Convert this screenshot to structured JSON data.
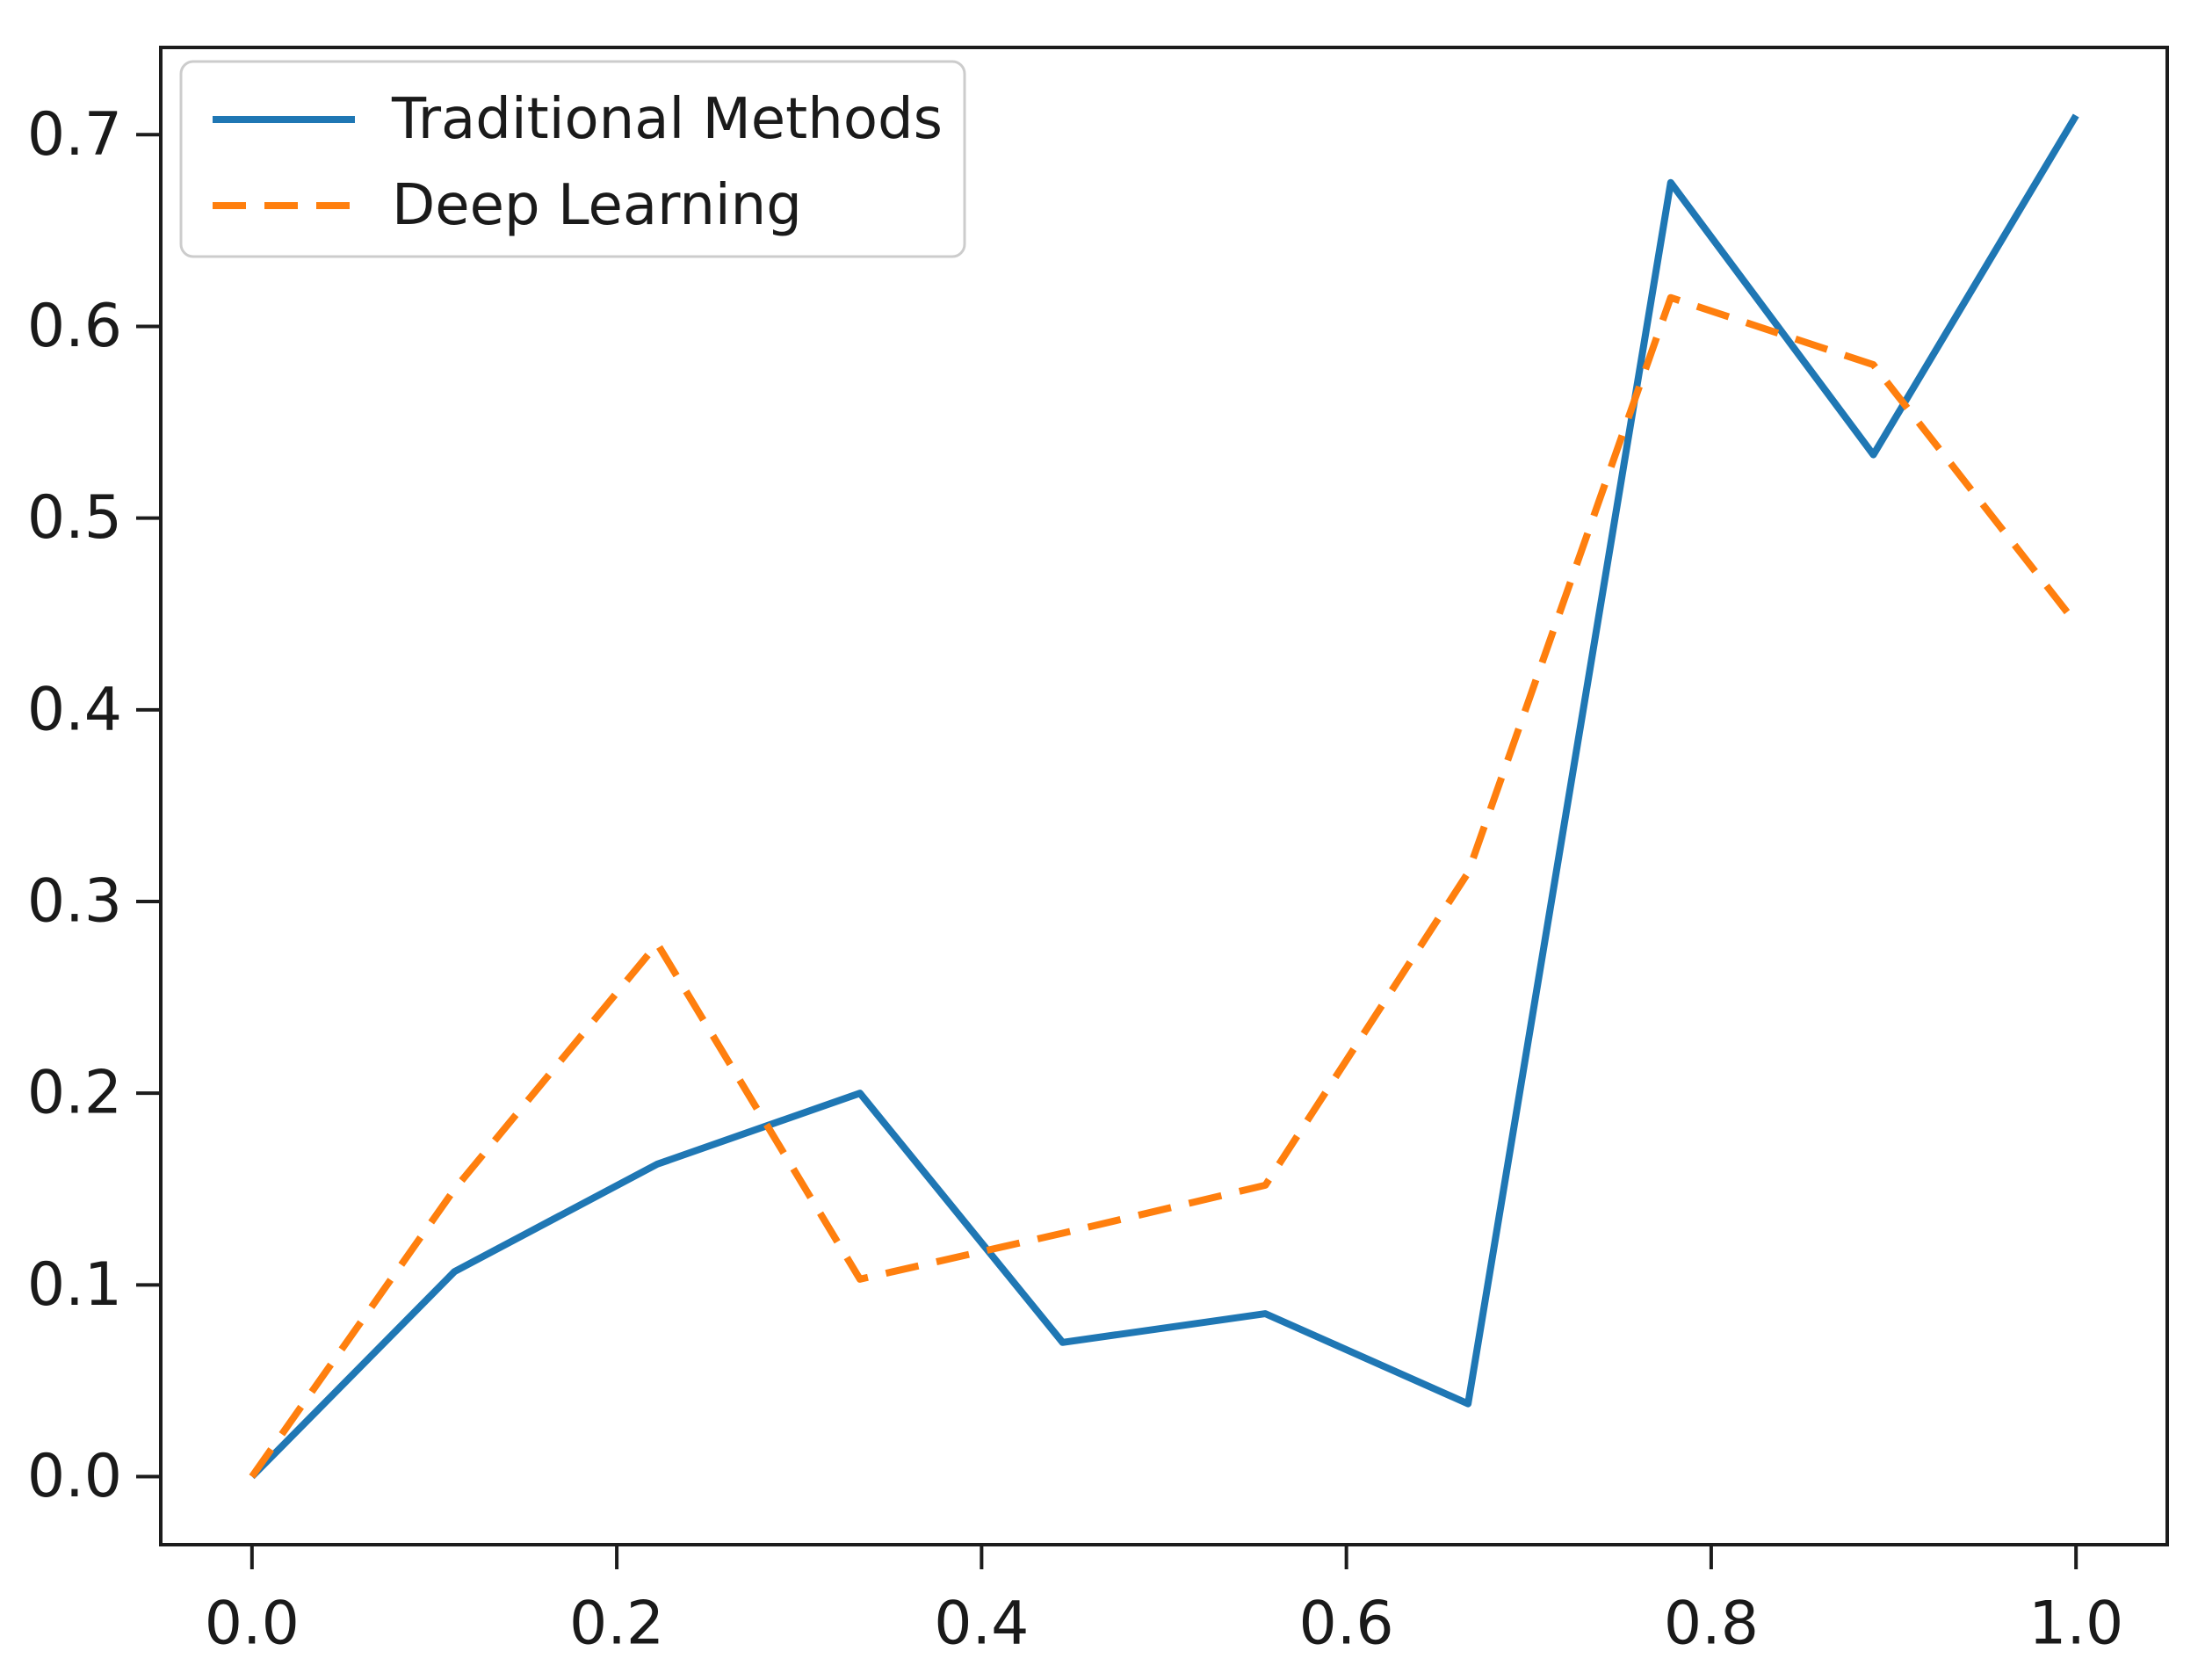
{
  "figure": {
    "background_color": "#ffffff",
    "spine_color": "#1c1c1c",
    "tick_color": "#1c1c1c",
    "text_color": "#1a1a1a"
  },
  "legend": {
    "position": "upper left",
    "border_color": "#cccccc",
    "background_color": "#ffffff",
    "items": [
      {
        "label": "Traditional Methods",
        "line_style": "solid",
        "color": "#1f77b4"
      },
      {
        "label": "Deep Learning",
        "line_style": "dashed",
        "color": "#ff7f0e"
      }
    ]
  },
  "chart_data": {
    "type": "line",
    "title": "",
    "xlabel": "",
    "ylabel": "",
    "grid": false,
    "legend_position": "upper left",
    "x": [
      0.0,
      0.1111,
      0.2222,
      0.3333,
      0.4444,
      0.5556,
      0.6667,
      0.7778,
      0.8889,
      1.0
    ],
    "series": [
      {
        "name": "Traditional Methods",
        "color": "#1f77b4",
        "style": "solid",
        "linewidth": 8,
        "values": [
          0.0,
          0.107,
          0.163,
          0.2,
          0.07,
          0.085,
          0.038,
          0.675,
          0.533,
          0.71
        ]
      },
      {
        "name": "Deep Learning",
        "color": "#ff7f0e",
        "style": "dashed",
        "linewidth": 8,
        "values": [
          0.0,
          0.15,
          0.278,
          0.103,
          0.127,
          0.152,
          0.315,
          0.615,
          0.58,
          0.445
        ]
      }
    ],
    "xlim": [
      -0.05,
      1.05
    ],
    "ylim": [
      -0.0355,
      0.7455
    ],
    "x_ticks": [
      0.0,
      0.2,
      0.4,
      0.6,
      0.8,
      1.0
    ],
    "x_tick_labels": [
      "0.0",
      "0.2",
      "0.4",
      "0.6",
      "0.8",
      "1.0"
    ],
    "y_ticks": [
      0.0,
      0.1,
      0.2,
      0.3,
      0.4,
      0.5,
      0.6,
      0.7
    ],
    "y_tick_labels": [
      "0.0",
      "0.1",
      "0.2",
      "0.3",
      "0.4",
      "0.5",
      "0.6",
      "0.7"
    ]
  }
}
